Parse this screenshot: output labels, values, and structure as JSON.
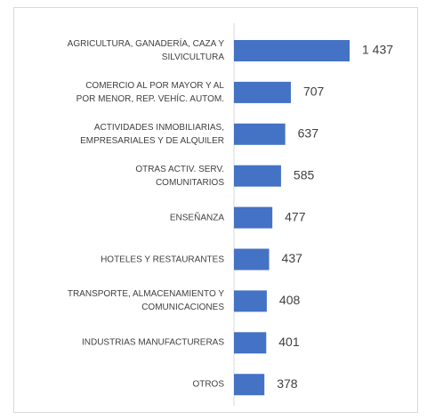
{
  "chart_data": {
    "type": "bar",
    "orientation": "horizontal",
    "categories": [
      "AGRICULTURA, GANADERÍA, CAZA Y\nSILVICULTURA",
      "COMERCIO AL POR MAYOR Y AL\nPOR MENOR, REP. VEHÍC. AUTOM.",
      "ACTIVIDADES INMOBILIARIAS,\nEMPRESARIALES Y DE ALQUILER",
      "OTRAS ACTIV. SERV.\nCOMUNITARIOS",
      "ENSEÑANZA",
      "HOTELES Y RESTAURANTES",
      "TRANSPORTE, ALMACENAMIENTO Y\nCOMUNICACIONES",
      "INDUSTRIAS MANUFACTURERAS",
      "OTROS"
    ],
    "values": [
      1437,
      707,
      637,
      585,
      477,
      437,
      408,
      401,
      378
    ],
    "value_labels": [
      "1 437",
      "707",
      "637",
      "585",
      "477",
      "437",
      "408",
      "401",
      "378"
    ],
    "color": "#4472c4"
  }
}
